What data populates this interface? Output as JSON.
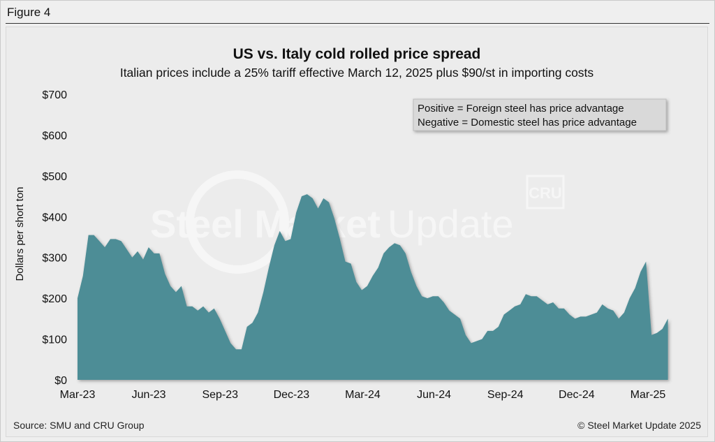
{
  "figure_label": "Figure 4",
  "source": "Source: SMU and CRU Group",
  "copyright": "© Steel Market Update 2025",
  "watermark": {
    "main_bold": "Steel Market",
    "main_light": " Update",
    "badge": "CRU"
  },
  "colors": {
    "area": "#4e8d96",
    "background": "#ececec",
    "legend_bg": "#d9d9d9"
  },
  "chart_data": {
    "type": "area",
    "title": "US vs. Italy cold rolled price spread",
    "subtitle": "Italian prices include a 25% tariff effective March 12, 2025 plus $90/st in importing costs",
    "xlabel": "",
    "ylabel": "Dollars per short ton",
    "ylim": [
      0,
      700
    ],
    "yticks": [
      0,
      100,
      200,
      300,
      400,
      500,
      600,
      700
    ],
    "ytick_labels": [
      "$0",
      "$100",
      "$200",
      "$300",
      "$400",
      "$500",
      "$600",
      "$700"
    ],
    "xlim": [
      0,
      25
    ],
    "xticks": [
      0,
      3,
      6,
      9,
      12,
      15,
      18,
      21,
      24
    ],
    "xtick_labels": [
      "Mar-23",
      "Jun-23",
      "Sep-23",
      "Dec-23",
      "Mar-24",
      "Jun-24",
      "Sep-24",
      "Dec-24",
      "Mar-25"
    ],
    "legend": [
      "Positive = Foreign steel has price advantage",
      "Negative = Domestic steel has price advantage"
    ],
    "grid": false,
    "series": [
      {
        "name": "US vs. Italy CR spread",
        "x": [
          0,
          0.23,
          0.46,
          0.69,
          0.92,
          1.15,
          1.38,
          1.61,
          1.84,
          2.07,
          2.3,
          2.53,
          2.76,
          2.99,
          3.22,
          3.45,
          3.68,
          3.91,
          4.14,
          4.37,
          4.6,
          4.83,
          5.06,
          5.29,
          5.52,
          5.75,
          5.98,
          6.21,
          6.44,
          6.67,
          6.9,
          7.13,
          7.36,
          7.59,
          7.82,
          8.05,
          8.28,
          8.51,
          8.74,
          8.97,
          9.2,
          9.43,
          9.66,
          9.89,
          10.12,
          10.35,
          10.58,
          10.81,
          11.04,
          11.27,
          11.5,
          11.73,
          11.96,
          12.19,
          12.42,
          12.65,
          12.88,
          13.11,
          13.34,
          13.57,
          13.8,
          14.03,
          14.26,
          14.49,
          14.72,
          14.95,
          15.18,
          15.41,
          15.64,
          15.87,
          16.1,
          16.33,
          16.56,
          16.79,
          17.02,
          17.25,
          17.48,
          17.71,
          17.94,
          18.17,
          18.4,
          18.63,
          18.86,
          19.09,
          19.32,
          19.55,
          19.78,
          20.01,
          20.24,
          20.47,
          20.7,
          20.93,
          21.16,
          21.39,
          21.62,
          21.85,
          22.08,
          22.31,
          22.54,
          22.77,
          23.0,
          23.23,
          23.46,
          23.69,
          23.92,
          24.15,
          24.38,
          24.61,
          24.84
        ],
        "values": [
          200,
          255,
          355,
          355,
          340,
          325,
          345,
          345,
          340,
          320,
          300,
          315,
          295,
          325,
          310,
          310,
          260,
          230,
          215,
          230,
          180,
          180,
          170,
          180,
          165,
          175,
          150,
          120,
          90,
          75,
          75,
          130,
          140,
          165,
          215,
          275,
          330,
          365,
          340,
          345,
          410,
          450,
          455,
          445,
          420,
          445,
          435,
          395,
          345,
          290,
          285,
          240,
          220,
          230,
          255,
          275,
          310,
          325,
          335,
          330,
          310,
          265,
          230,
          205,
          200,
          205,
          205,
          190,
          170,
          160,
          150,
          110,
          90,
          95,
          100,
          120,
          120,
          130,
          160,
          170,
          180,
          185,
          210,
          205,
          205,
          195,
          185,
          190,
          175,
          175,
          160,
          150,
          155,
          155,
          160,
          165,
          185,
          175,
          170,
          150,
          165,
          200,
          225,
          265,
          290,
          110,
          115,
          125,
          150
        ]
      }
    ]
  }
}
